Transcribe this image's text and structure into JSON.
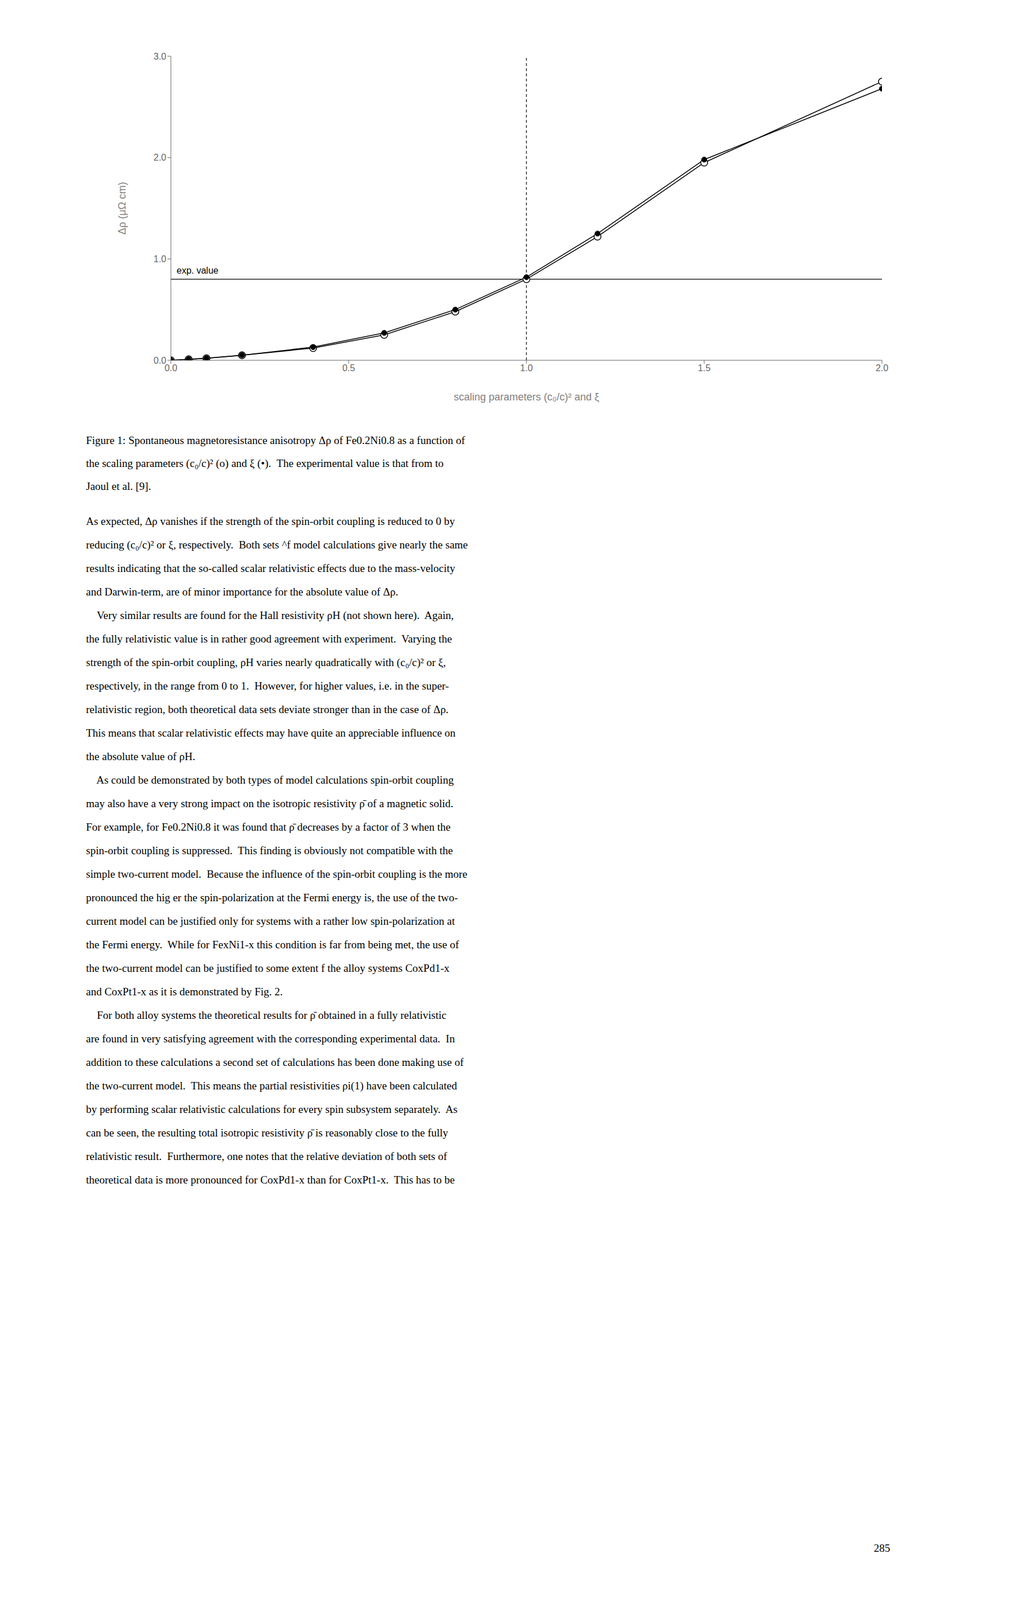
{
  "chart_data": {
    "type": "line",
    "xlabel": "scaling parameters (c₀/c)² and ξ",
    "ylabel": "Δρ (μΩ cm)",
    "xlim": [
      0.0,
      2.0
    ],
    "ylim": [
      0.0,
      3.0
    ],
    "xticks": [
      {
        "value": 0.0,
        "label": "0.0"
      },
      {
        "value": 0.5,
        "label": "0.5"
      },
      {
        "value": 1.0,
        "label": "1.0"
      },
      {
        "value": 1.5,
        "label": "1.5"
      },
      {
        "value": 2.0,
        "label": "2.0"
      }
    ],
    "yticks": [
      {
        "value": 0.0,
        "label": "0.0"
      },
      {
        "value": 1.0,
        "label": "1.0"
      },
      {
        "value": 2.0,
        "label": "2.0"
      },
      {
        "value": 3.0,
        "label": "3.0"
      }
    ],
    "grid": false,
    "series": [
      {
        "color": "#000000",
        "marker": "open_circle",
        "x": [
          0.0,
          0.05,
          0.1,
          0.2,
          0.4,
          0.6,
          0.8,
          1.0,
          1.2,
          1.5,
          2.0
        ],
        "values": [
          0.0,
          0.01,
          0.02,
          0.05,
          0.12,
          0.25,
          0.48,
          0.8,
          1.22,
          1.95,
          2.75
        ]
      },
      {
        "color": "#000000",
        "marker": "filled_circle",
        "x": [
          0.0,
          0.05,
          0.1,
          0.2,
          0.4,
          0.6,
          0.8,
          1.0,
          1.2,
          1.5,
          2.0
        ],
        "values": [
          0.0,
          0.01,
          0.02,
          0.05,
          0.13,
          0.27,
          0.5,
          0.82,
          1.25,
          1.98,
          2.68
        ]
      }
    ],
    "reference_lines": [
      {
        "axis": "y",
        "value": 0.8,
        "line_style": "solid",
        "color": "#000000",
        "label": "exp. value"
      },
      {
        "axis": "x",
        "value": 1.0,
        "line_style": "dashed",
        "color": "#000000"
      }
    ]
  },
  "caption": [
    "Figure 1: Spontaneous magnetoresistance anisotropy Δρ of Fe0.2Ni0.8 as a function of",
    "the scaling parameters (c₀/c)² (o) and ξ (•).  The experimental value is that from to",
    "Jaoul et al. [9]."
  ],
  "body_text": [
    "As expected, Δρ vanishes if the strength of the spin-orbit coupling is reduced to 0 by",
    "reducing (c₀/c)² or ξ, respectively.  Both sets ^f model calculations give nearly the same",
    "results indicating that the so-called scalar relativistic effects due to the mass-velocity",
    "and Darwin-term, are of minor importance for the absolute value of Δρ.",
    "    Very similar results are found for the Hall resistivity ρH (not shown here).  Again,",
    "the fully relativistic value is in rather good agreement with experiment.  Varying the",
    "strength of the spin-orbit coupling, ρH varies nearly quadratically with (c₀/c)² or ξ,",
    "respectively, in the range from 0 to 1.  However, for higher values, i.e. in the super-",
    "relativistic region, both theoretical data sets deviate stronger than in the case of Δρ.",
    "This means that scalar relativistic effects may have quite an appreciable influence on",
    "the absolute value of ρH.",
    "    As could be demonstrated by both types of model calculations spin-orbit coupling",
    "may also have a very strong impact on the isotropic resistivity ρ̄ of a magnetic solid.",
    "For example, for Fe0.2Ni0.8 it was found that ρ̄ decreases by a factor of 3 when the",
    "spin-orbit coupling is suppressed.  This finding is obviously not compatible with the",
    "simple two-current model.  Because the influence of the spin-orbit coupling is the more",
    "pronounced the hig er the spin-polarization at the Fermi energy is, the use of the two-",
    "current model can be justified only for systems with a rather low spin-polarization at",
    "the Fermi energy.  While for FexNi1-x this condition is far from being met, the use of",
    "the two-current model can be justified to some extent f the alloy systems CoxPd1-x",
    "and CoxPt1-x as it is demonstrated by Fig. 2.",
    "    For both alloy systems the theoretical results for ρ̄ obtained in a fully relativistic",
    "are found in very satisfying agreement with the corresponding experimental data.  In",
    "addition to these calculations a second set of calculations has been done making use of",
    "the two-current model.  This means the partial resistivities ρi(1) have been calculated",
    "by performing scalar relativistic calculations for every spin subsystem separately.  As",
    "can be seen, the resulting total isotropic resistivity ρ̄ is reasonably close to the fully",
    "relativistic result.  Furthermore, one notes that the relative deviation of both sets of",
    "theoretical data is more pronounced for CoxPd1-x than for CoxPt1-x.  This has to be"
  ],
  "page_number": "285"
}
